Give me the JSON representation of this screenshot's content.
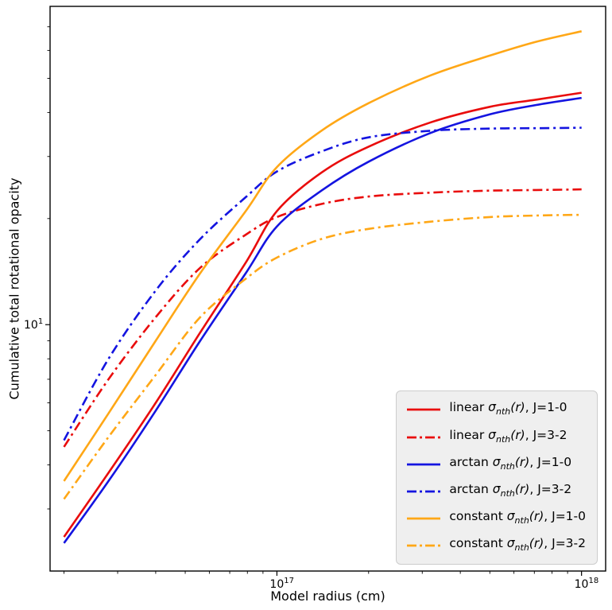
{
  "chart_data": {
    "type": "line",
    "title": "",
    "xlabel": "Model radius (cm)",
    "ylabel": "Cumulative total rotational opacity",
    "x_scale": "log",
    "y_scale": "log",
    "xlim": [
      1.8e+16,
      1.2e+18
    ],
    "ylim": [
      2.0,
      80
    ],
    "x_ticks": [
      {
        "value": 1e+17,
        "base": "10",
        "exp": "17"
      },
      {
        "value": 1e+18,
        "base": "10",
        "exp": "18"
      }
    ],
    "y_ticks": [
      {
        "value": 10,
        "base": "10",
        "exp": "1"
      }
    ],
    "grid": false,
    "legend_position": "lower right",
    "sigma_label": {
      "symbol": "σ",
      "sub": "nth",
      "arg": "(r)"
    },
    "x": [
      2e+16,
      2.8e+16,
      4e+16,
      5.6e+16,
      7.9e+16,
      1e+17,
      1.4e+17,
      2e+17,
      3.2e+17,
      5e+17,
      7.1e+17,
      1e+18
    ],
    "series": [
      {
        "name": "linear",
        "label_suffix": ", J=1-0",
        "color": "#e90c0c",
        "style": "solid",
        "values": [
          2.5,
          3.8,
          6.0,
          9.5,
          15,
          21,
          27,
          32,
          37.5,
          41.5,
          43.5,
          45.5
        ]
      },
      {
        "name": "linear",
        "label_suffix": ", J=3-2",
        "color": "#e90c0c",
        "style": "dashdot",
        "values": [
          4.5,
          7.0,
          10.5,
          14.5,
          18,
          20.2,
          22,
          23.1,
          23.7,
          24,
          24.1,
          24.2
        ]
      },
      {
        "name": "arctan",
        "label_suffix": ", J=1-0",
        "color": "#1414e0",
        "style": "solid",
        "values": [
          2.4,
          3.6,
          5.7,
          9.0,
          14,
          19,
          24,
          29,
          35,
          39.5,
          42,
          44
        ]
      },
      {
        "name": "arctan",
        "label_suffix": ", J=3-2",
        "color": "#1414e0",
        "style": "dashdot",
        "values": [
          4.7,
          8.0,
          12.5,
          17.5,
          23,
          27.2,
          31,
          34,
          35.5,
          36,
          36.1,
          36.2
        ]
      },
      {
        "name": "constant",
        "label_suffix": ", J=1-0",
        "color": "#ffa716",
        "style": "solid",
        "values": [
          3.6,
          5.6,
          9.0,
          14,
          21,
          28,
          35.5,
          42.5,
          51,
          58,
          63.5,
          68
        ]
      },
      {
        "name": "constant",
        "label_suffix": ", J=3-2",
        "color": "#ffa716",
        "style": "dashdot",
        "values": [
          3.2,
          4.8,
          7.2,
          10.5,
          13.5,
          15.5,
          17.5,
          18.7,
          19.6,
          20.2,
          20.4,
          20.5
        ]
      }
    ]
  },
  "layout_colors": {
    "legend_bg": "#efefef",
    "legend_border": "#cccccc",
    "spine": "#000000"
  }
}
